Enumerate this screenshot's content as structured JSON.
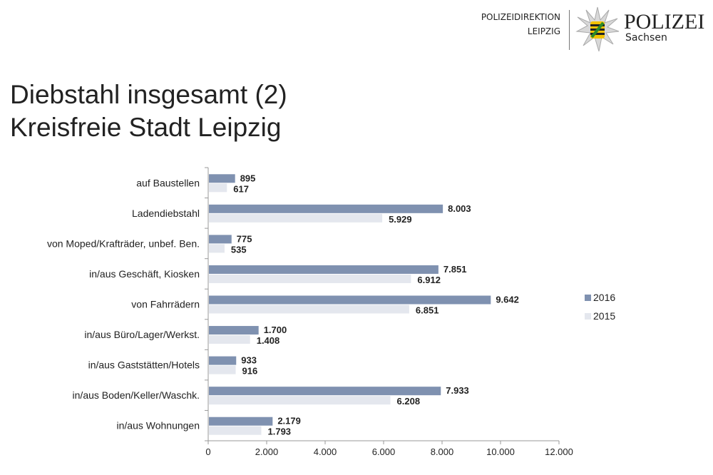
{
  "header": {
    "direktion_line1": "POLIZEIDIREKTION",
    "direktion_line2": "LEIPZIG",
    "logo_text": "POLIZEI",
    "logo_subtext": "Sachsen"
  },
  "title": {
    "line1": "Diebstahl insgesamt (2)",
    "line2": "Kreisfreie Stadt Leipzig"
  },
  "chart_data": {
    "type": "bar",
    "orientation": "horizontal",
    "categories": [
      "auf Baustellen",
      "Ladendiebstahl",
      "von Moped/Krafträder, unbef. Ben.",
      "in/aus Geschäft, Kiosken",
      "von Fahrrädern",
      "in/aus Büro/Lager/Werkst.",
      "in/aus Gaststätten/Hotels",
      "in/aus Boden/Keller/Waschk.",
      "in/aus Wohnungen"
    ],
    "series": [
      {
        "name": "2016",
        "color": "#7f91b0",
        "values": [
          895,
          8003,
          775,
          7851,
          9642,
          1700,
          933,
          7933,
          2179
        ],
        "labels": [
          "895",
          "8.003",
          "775",
          "7.851",
          "9.642",
          "1.700",
          "933",
          "7.933",
          "2.179"
        ]
      },
      {
        "name": "2015",
        "color": "#e4e7ee",
        "values": [
          617,
          5929,
          535,
          6912,
          6851,
          1408,
          916,
          6208,
          1793
        ],
        "labels": [
          "617",
          "5.929",
          "535",
          "6.912",
          "6.851",
          "1.408",
          "916",
          "6.208",
          "1.793"
        ]
      }
    ],
    "xlim": [
      0,
      12000
    ],
    "ticks": [
      0,
      2000,
      4000,
      6000,
      8000,
      10000,
      12000
    ],
    "tick_labels": [
      "0",
      "2.000",
      "4.000",
      "6.000",
      "8.000",
      "10.000",
      "12.000"
    ],
    "legend": "right",
    "grid": false
  }
}
